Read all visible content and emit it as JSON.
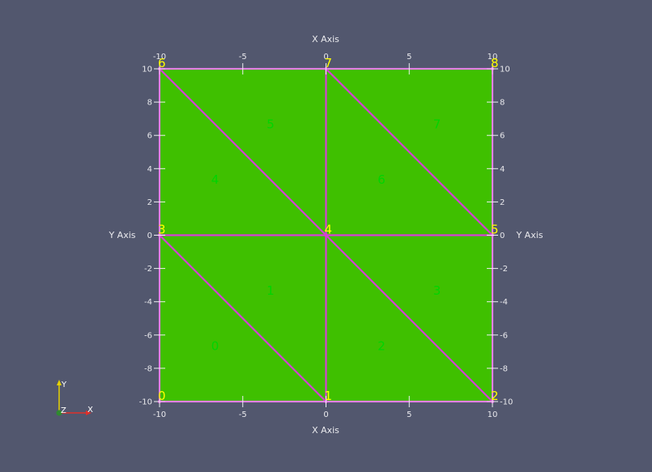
{
  "scene": {
    "background": "#52576e",
    "mesh_fill": "#3fc000",
    "edge_color": "#d63fd6",
    "node_label_color": "#ffff00",
    "cell_label_color": "#00d400"
  },
  "axes": {
    "x_title": "X Axis",
    "y_title": "Y Axis",
    "range": [
      -10,
      10
    ],
    "x_ticks": [
      {
        "value": -10,
        "label": "-10"
      },
      {
        "value": -5,
        "label": "-5"
      },
      {
        "value": 0,
        "label": "0"
      },
      {
        "value": 5,
        "label": "5"
      },
      {
        "value": 10,
        "label": "10"
      }
    ],
    "y_ticks": [
      {
        "value": 10,
        "label": "10"
      },
      {
        "value": 8,
        "label": "8"
      },
      {
        "value": 6,
        "label": "6"
      },
      {
        "value": 4,
        "label": "4"
      },
      {
        "value": 2,
        "label": "2"
      },
      {
        "value": 0,
        "label": "0"
      },
      {
        "value": -2,
        "label": "-2"
      },
      {
        "value": -4,
        "label": "-4"
      },
      {
        "value": -6,
        "label": "-6"
      },
      {
        "value": -8,
        "label": "-8"
      },
      {
        "value": -10,
        "label": "-10"
      }
    ]
  },
  "mesh": {
    "nodes": [
      {
        "id": "0",
        "x": -10,
        "y": -10
      },
      {
        "id": "1",
        "x": 0,
        "y": -10
      },
      {
        "id": "2",
        "x": 10,
        "y": -10
      },
      {
        "id": "3",
        "x": -10,
        "y": 0
      },
      {
        "id": "4",
        "x": 0,
        "y": 0
      },
      {
        "id": "5",
        "x": 10,
        "y": 0
      },
      {
        "id": "6",
        "x": -10,
        "y": 10
      },
      {
        "id": "7",
        "x": 0,
        "y": 10
      },
      {
        "id": "8",
        "x": 10,
        "y": 10
      }
    ],
    "cells": [
      {
        "id": "0",
        "nodes": [
          0,
          1,
          3
        ]
      },
      {
        "id": "1",
        "nodes": [
          1,
          4,
          3
        ]
      },
      {
        "id": "2",
        "nodes": [
          1,
          2,
          4
        ]
      },
      {
        "id": "3",
        "nodes": [
          2,
          5,
          4
        ]
      },
      {
        "id": "4",
        "nodes": [
          3,
          4,
          6
        ]
      },
      {
        "id": "5",
        "nodes": [
          4,
          7,
          6
        ]
      },
      {
        "id": "6",
        "nodes": [
          4,
          5,
          7
        ]
      },
      {
        "id": "7",
        "nodes": [
          5,
          8,
          7
        ]
      }
    ]
  },
  "orientation": {
    "y_label": "Y",
    "z_label": "Z",
    "x_label": "X",
    "y_color": "#e6d200",
    "z_color": "#2f8a2f",
    "x_color": "#e0302a"
  }
}
